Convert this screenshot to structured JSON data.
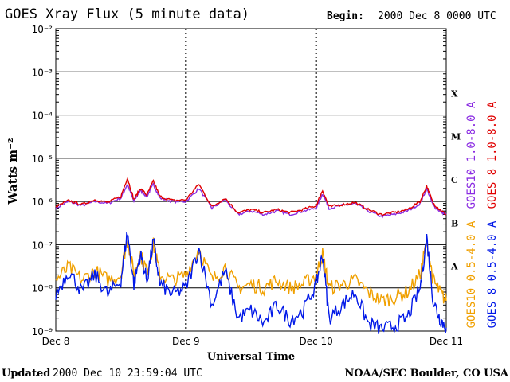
{
  "header": {
    "title": "GOES Xray Flux (5 minute data)",
    "begin_label": "Begin:",
    "begin_value": "2000 Dec 8 0000 UTC"
  },
  "footer": {
    "updated_label": "Updated",
    "updated_value": "2000 Dec 10 23:59:04 UTC",
    "credit": "NOAA/SEC Boulder, CO USA"
  },
  "colors": {
    "goes10_long": "#8a2be2",
    "goes8_long": "#e00000",
    "goes10_short": "#f0a000",
    "goes8_short": "#0018e8",
    "axis": "#000000",
    "grid": "#000000"
  },
  "chart_data": {
    "type": "line",
    "title": "GOES Xray Flux (5 minute data)",
    "xlabel": "Universal Time",
    "ylabel": "Watts m⁻²",
    "yscale": "log",
    "ylim": [
      1e-09,
      0.01
    ],
    "xlim": [
      "2000-12-08",
      "2000-12-11"
    ],
    "x_ticks": [
      "Dec 8",
      "Dec 9",
      "Dec 10",
      "Dec 11"
    ],
    "y_ticks": [
      "10⁻⁹",
      "10⁻⁸",
      "10⁻⁷",
      "10⁻⁶",
      "10⁻⁵",
      "10⁻⁴",
      "10⁻³",
      "10⁻²"
    ],
    "flare_classes": [
      {
        "label": "A",
        "level": 1e-08
      },
      {
        "label": "B",
        "level": 1e-07
      },
      {
        "label": "C",
        "level": 1e-06
      },
      {
        "label": "M",
        "level": 1e-05
      },
      {
        "label": "X",
        "level": 0.0001
      }
    ],
    "grid": "horizontal at each decade",
    "legend_position": "right",
    "series": [
      {
        "name": "GOES10 1.0-8.0 A",
        "color_key": "goes10_long",
        "days": [
          0,
          0.1,
          0.2,
          0.3,
          0.4,
          0.5,
          0.55,
          0.6,
          0.65,
          0.7,
          0.75,
          0.8,
          0.9,
          1.0,
          1.1,
          1.2,
          1.3,
          1.4,
          1.5,
          1.6,
          1.7,
          1.8,
          1.9,
          2.0,
          2.05,
          2.1,
          2.2,
          2.3,
          2.4,
          2.5,
          2.6,
          2.7,
          2.8,
          2.85,
          2.9,
          2.95,
          3.0
        ],
        "values": [
          7e-07,
          1e-06,
          8e-07,
          1e-06,
          9e-07,
          1.2e-06,
          2.5e-06,
          1e-06,
          1.8e-06,
          1.3e-06,
          2.5e-06,
          1.2e-06,
          1e-06,
          1e-06,
          2e-06,
          7e-07,
          1.1e-06,
          5e-07,
          6e-07,
          5e-07,
          6e-07,
          5e-07,
          6e-07,
          7e-07,
          1.5e-06,
          7e-07,
          8e-07,
          9e-07,
          6e-07,
          4.5e-07,
          5e-07,
          6e-07,
          9e-07,
          2e-06,
          8e-07,
          6e-07,
          5e-07
        ]
      },
      {
        "name": "GOES 8 1.0-8.0 A",
        "color_key": "goes8_long",
        "days": [
          0,
          0.1,
          0.2,
          0.3,
          0.4,
          0.5,
          0.55,
          0.6,
          0.65,
          0.7,
          0.75,
          0.8,
          0.9,
          1.0,
          1.1,
          1.2,
          1.3,
          1.4,
          1.5,
          1.6,
          1.7,
          1.8,
          1.9,
          2.0,
          2.05,
          2.1,
          2.2,
          2.3,
          2.4,
          2.5,
          2.6,
          2.7,
          2.8,
          2.85,
          2.9,
          2.95,
          3.0
        ],
        "values": [
          7.5e-07,
          1.05e-06,
          8.5e-07,
          1.1e-06,
          9.5e-07,
          1.3e-06,
          3.5e-06,
          1.1e-06,
          2e-06,
          1.4e-06,
          3e-06,
          1.3e-06,
          1.05e-06,
          1.1e-06,
          2.5e-06,
          7.5e-07,
          1.2e-06,
          5.5e-07,
          6.5e-07,
          5.5e-07,
          6.5e-07,
          5.5e-07,
          6.5e-07,
          8e-07,
          1.8e-06,
          7.5e-07,
          8.5e-07,
          9.5e-07,
          6.5e-07,
          5e-07,
          5.5e-07,
          6.5e-07,
          1e-06,
          2.3e-06,
          9e-07,
          6.5e-07,
          5e-07
        ]
      },
      {
        "name": "GOES10 0.5-4.0 A",
        "color_key": "goes10_short",
        "days": [
          0,
          0.1,
          0.2,
          0.3,
          0.4,
          0.5,
          0.55,
          0.6,
          0.65,
          0.7,
          0.75,
          0.8,
          0.9,
          1.0,
          1.1,
          1.2,
          1.3,
          1.4,
          1.5,
          1.6,
          1.7,
          1.8,
          1.9,
          2.0,
          2.05,
          2.1,
          2.2,
          2.3,
          2.4,
          2.5,
          2.6,
          2.7,
          2.8,
          2.85,
          2.9,
          2.95,
          3.0
        ],
        "values": [
          1.5e-08,
          3e-08,
          1.5e-08,
          2.5e-08,
          1.5e-08,
          2e-08,
          1.5e-07,
          2e-08,
          6e-08,
          2.5e-08,
          1e-07,
          2e-08,
          1.5e-08,
          2e-08,
          8e-08,
          1.5e-08,
          3e-08,
          1e-08,
          1.2e-08,
          1e-08,
          1.5e-08,
          1e-08,
          1.2e-08,
          2e-08,
          6e-08,
          1e-08,
          1.2e-08,
          1.5e-08,
          8e-09,
          5e-09,
          6e-09,
          8e-09,
          2e-08,
          1.2e-07,
          1.5e-08,
          8e-09,
          5e-09
        ]
      },
      {
        "name": "GOES 8 0.5-4.0 A",
        "color_key": "goes8_short",
        "days": [
          0,
          0.1,
          0.2,
          0.3,
          0.4,
          0.5,
          0.55,
          0.6,
          0.65,
          0.7,
          0.75,
          0.8,
          0.9,
          1.0,
          1.1,
          1.2,
          1.3,
          1.4,
          1.5,
          1.6,
          1.7,
          1.8,
          1.9,
          2.0,
          2.05,
          2.1,
          2.2,
          2.3,
          2.4,
          2.5,
          2.6,
          2.7,
          2.8,
          2.85,
          2.9,
          2.95,
          3.0
        ],
        "values": [
          7e-09,
          2.5e-08,
          8e-09,
          2e-08,
          7e-09,
          1.5e-08,
          2e-07,
          1.2e-08,
          6e-08,
          1.5e-08,
          1.2e-07,
          1.2e-08,
          7e-09,
          1e-08,
          8e-08,
          4e-09,
          2.5e-08,
          2e-09,
          3e-09,
          1.5e-09,
          4e-09,
          1.8e-09,
          3e-09,
          1.2e-08,
          6e-08,
          2e-09,
          4e-09,
          8e-09,
          1.5e-09,
          1.1e-09,
          1.3e-09,
          2e-09,
          1e-08,
          1.5e-07,
          5e-09,
          2e-09,
          1.2e-09
        ]
      }
    ]
  }
}
